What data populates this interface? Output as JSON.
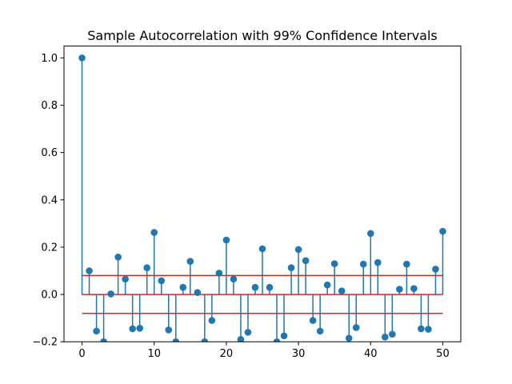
{
  "chart_data": {
    "type": "stem",
    "title": "Sample Autocorrelation with 99% Confidence Intervals",
    "xlabel": "",
    "ylabel": "",
    "xlim": [
      -2.5,
      52.5
    ],
    "ylim": [
      -0.2,
      1.05
    ],
    "x_ticks": [
      0,
      10,
      20,
      30,
      40,
      50
    ],
    "x_tick_labels": [
      "0",
      "10",
      "20",
      "30",
      "40",
      "50"
    ],
    "y_ticks": [
      -0.2,
      0.0,
      0.2,
      0.4,
      0.6,
      0.8,
      1.0
    ],
    "y_tick_labels": [
      "−0.2",
      "0.0",
      "0.2",
      "0.4",
      "0.6",
      "0.8",
      "1.0"
    ],
    "grid": false,
    "colors": {
      "stem": "#1f77b4",
      "baseline": "#d62728",
      "confidence": "#d62728"
    },
    "lags": [
      0,
      1,
      2,
      3,
      4,
      5,
      6,
      7,
      8,
      9,
      10,
      11,
      12,
      13,
      14,
      15,
      16,
      17,
      18,
      19,
      20,
      21,
      22,
      23,
      24,
      25,
      26,
      27,
      28,
      29,
      30,
      31,
      32,
      33,
      34,
      35,
      36,
      37,
      38,
      39,
      40,
      41,
      42,
      43,
      44,
      45,
      46,
      47,
      48,
      49,
      50
    ],
    "values": [
      1.0,
      0.1,
      -0.155,
      -0.2,
      0.002,
      0.158,
      0.065,
      -0.145,
      -0.143,
      0.113,
      0.262,
      0.058,
      -0.15,
      -0.2,
      0.03,
      0.14,
      0.008,
      -0.2,
      -0.11,
      0.09,
      0.23,
      0.065,
      -0.19,
      -0.16,
      0.03,
      0.193,
      0.03,
      -0.2,
      -0.175,
      0.113,
      0.19,
      0.143,
      -0.11,
      -0.155,
      0.04,
      0.13,
      0.015,
      -0.185,
      -0.14,
      0.128,
      0.258,
      0.135,
      -0.18,
      -0.168,
      0.022,
      0.128,
      0.025,
      -0.145,
      -0.147,
      0.107,
      0.267
    ],
    "confidence_interval": [
      -0.08,
      0.08
    ],
    "baseline": 0.0
  }
}
